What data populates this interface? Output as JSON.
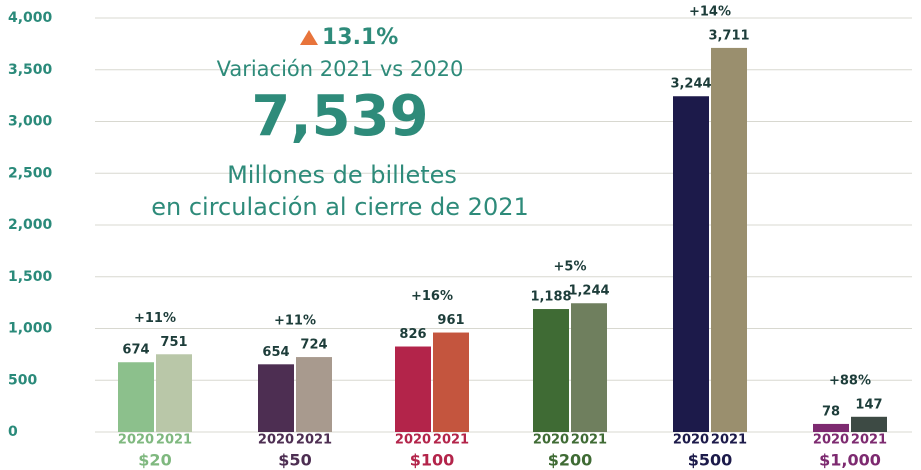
{
  "chart_data": {
    "type": "bar",
    "headline": {
      "change": "13.1%",
      "change_label": "Variación 2021 vs 2020",
      "total": "7,539",
      "total_label_1": "Millones de billetes",
      "total_label_2": "en circulación al cierre de 2021"
    },
    "categories": [
      "$20",
      "$50",
      "$100",
      "$200",
      "$500",
      "$1,000"
    ],
    "category_colors": [
      "#7fb87f",
      "#4d2e52",
      "#b3244a",
      "#3f6b34",
      "#1c1a4a",
      "#7d2a70"
    ],
    "series": [
      {
        "name": "2020",
        "colors": [
          "#8cc08c",
          "#4d2e52",
          "#b3244a",
          "#3f6b34",
          "#1c1a4a",
          "#7d2a70"
        ],
        "values": [
          674,
          654,
          826,
          1188,
          3244,
          78
        ],
        "value_labels": [
          "674",
          "654",
          "826",
          "1,188",
          "3,244",
          "78"
        ]
      },
      {
        "name": "2021",
        "colors": [
          "#b9c7a8",
          "#a89a8e",
          "#c4553e",
          "#6f7f5e",
          "#9a8f6e",
          "#3d4a44"
        ],
        "values": [
          751,
          724,
          961,
          1244,
          3711,
          147
        ],
        "value_labels": [
          "751",
          "724",
          "961",
          "1,244",
          "3,711",
          "147"
        ]
      }
    ],
    "annotations": [
      "+11%",
      "+11%",
      "+16%",
      "+5%",
      "+14%",
      "+88%"
    ],
    "ylim": [
      0,
      4000
    ],
    "yticks": [
      0,
      500,
      {
        "value": 1000,
        "label": "1,000"
      },
      {
        "value": 1500,
        "label": "1,500"
      },
      {
        "value": 2000,
        "label": "2,000"
      },
      {
        "value": 2500,
        "label": "2,500"
      },
      {
        "value": 3000,
        "label": "3,000"
      },
      {
        "value": 3500,
        "label": "3,500"
      },
      {
        "value": 4000,
        "label": "4,000"
      }
    ],
    "grid": true
  }
}
